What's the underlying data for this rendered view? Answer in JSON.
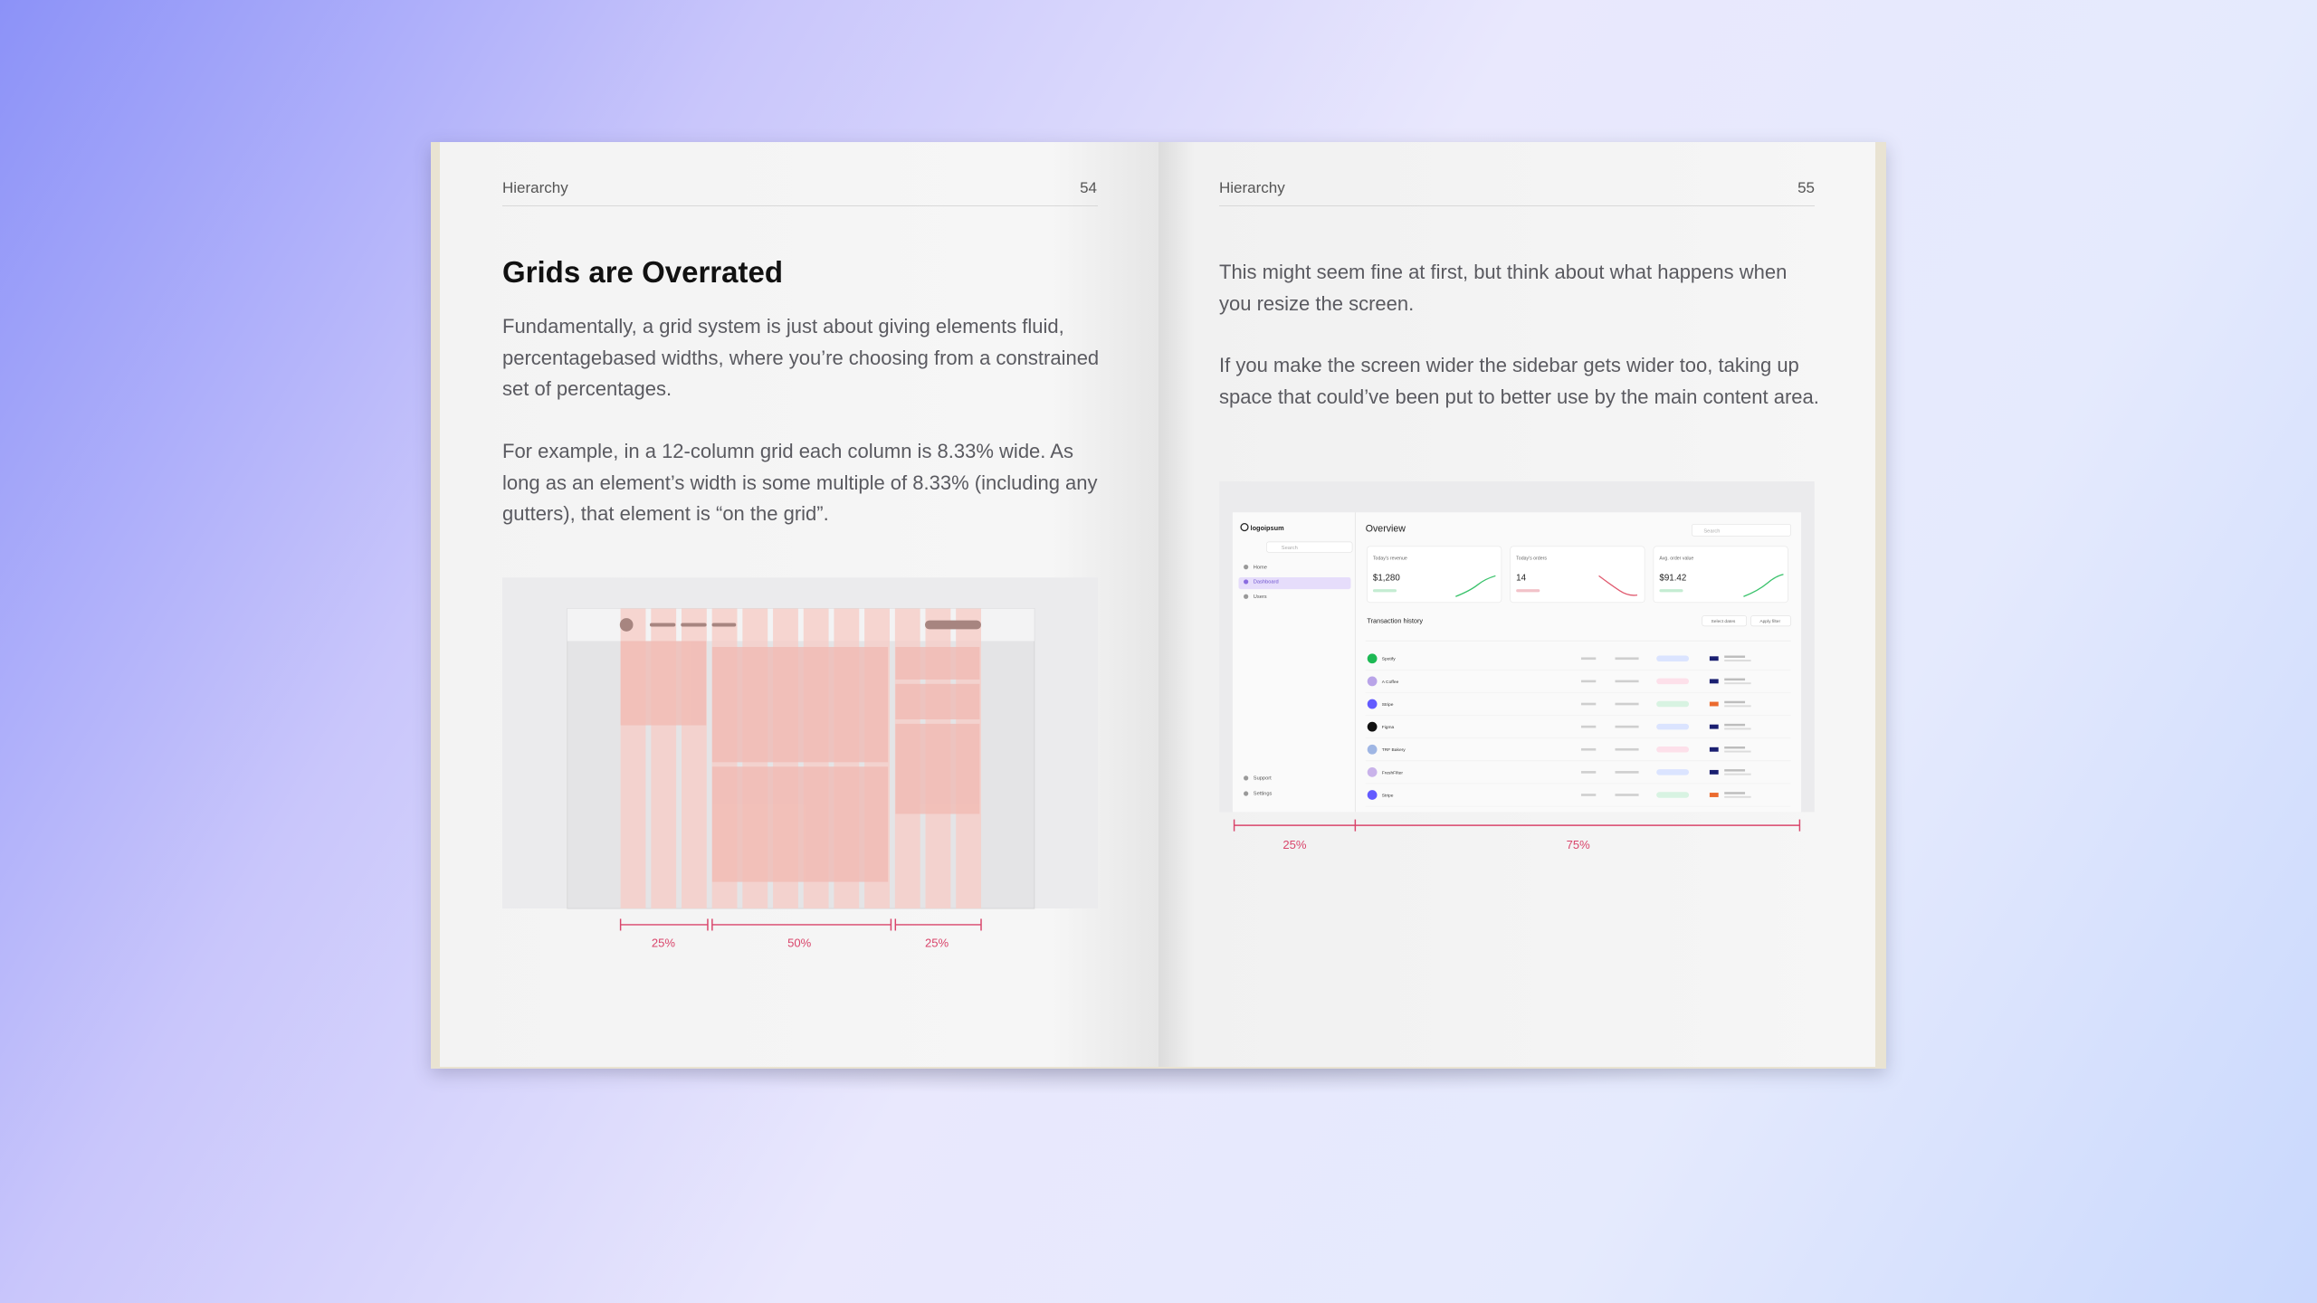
{
  "left_page": {
    "header": "Hierarchy",
    "page_number": "54",
    "title": "Grids are Overrated",
    "paragraphs": [
      "Fundamentally, a grid system is just about giving elements fluid, percentagebased widths, where you’re choosing from a constrained set of percentages.",
      "For example, in a 12-column grid each column is 8.33% wide. As long as an element’s width is some multiple of 8.33% (including any gutters), that element is “on the grid”."
    ],
    "figure_labels": [
      "25%",
      "50%",
      "25%"
    ]
  },
  "right_page": {
    "header": "Hierarchy",
    "page_number": "55",
    "paragraphs": [
      "This might seem fine at first, but think about what happens when you resize the screen.",
      "If you make the screen wider the sidebar gets wider too, taking up space that could’ve been put to better use by the main content area."
    ],
    "figure_labels": [
      "25%",
      "75%"
    ],
    "dashboard": {
      "logo": "logoipsum",
      "title": "Overview",
      "search": "Search",
      "nav": [
        "Home",
        "Dashboard",
        "Users"
      ],
      "nav_bottom": [
        "Support",
        "Settings"
      ],
      "cards": [
        {
          "label": "Today's revenue",
          "value": "$1,280"
        },
        {
          "label": "Today's orders",
          "value": "14"
        },
        {
          "label": "Avg. order value",
          "value": "$91.42"
        }
      ],
      "section_title": "Transaction history",
      "buttons": [
        "Select dates",
        "Apply filter"
      ],
      "rows": [
        "Spotify",
        "A Coffee",
        "Stripe",
        "Figma",
        "TRF Bakery",
        "FreshFilter",
        "Stripe"
      ]
    }
  }
}
